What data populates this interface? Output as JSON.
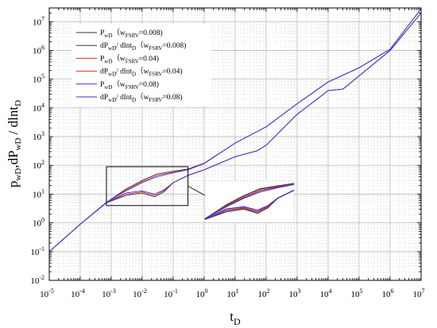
{
  "chart_data": {
    "type": "line",
    "xlabel": "t",
    "xlabel_sub": "D",
    "ylabel_parts": [
      "p",
      "wD",
      ",dP",
      "wD",
      " / dlnt",
      "D"
    ],
    "xscale": "log",
    "yscale": "log",
    "xlim": [
      1e-05,
      10000000
    ],
    "ylim": [
      0.01,
      30000000
    ],
    "grid": true,
    "legend_position": "top-left",
    "x_ticks": [
      {
        "base": "10",
        "exp": "-5",
        "v": 1e-05
      },
      {
        "base": "10",
        "exp": "-4",
        "v": 0.0001
      },
      {
        "base": "10",
        "exp": "-3",
        "v": 0.001
      },
      {
        "base": "10",
        "exp": "-2",
        "v": 0.01
      },
      {
        "base": "10",
        "exp": "-1",
        "v": 0.1
      },
      {
        "base": "10",
        "exp": "0",
        "v": 1
      },
      {
        "base": "10",
        "exp": "1",
        "v": 10
      },
      {
        "base": "10",
        "exp": "2",
        "v": 100
      },
      {
        "base": "10",
        "exp": "3",
        "v": 1000
      },
      {
        "base": "10",
        "exp": "4",
        "v": 10000
      },
      {
        "base": "10",
        "exp": "5",
        "v": 100000
      },
      {
        "base": "10",
        "exp": "6",
        "v": 1000000
      },
      {
        "base": "10",
        "exp": "7",
        "v": 10000000
      }
    ],
    "y_ticks": [
      {
        "base": "10",
        "exp": "-2",
        "v": 0.01
      },
      {
        "base": "10",
        "exp": "-1",
        "v": 0.1
      },
      {
        "base": "10",
        "exp": "0",
        "v": 1
      },
      {
        "base": "10",
        "exp": "1",
        "v": 10
      },
      {
        "base": "10",
        "exp": "2",
        "v": 100
      },
      {
        "base": "10",
        "exp": "3",
        "v": 1000
      },
      {
        "base": "10",
        "exp": "4",
        "v": 10000
      },
      {
        "base": "10",
        "exp": "5",
        "v": 100000
      },
      {
        "base": "10",
        "exp": "6",
        "v": 1000000
      },
      {
        "base": "10",
        "exp": "7",
        "v": 10000000
      }
    ],
    "legend": [
      {
        "parts": [
          [
            "P",
            ""
          ],
          [
            "wD",
            "sub"
          ],
          [
            "（w",
            ""
          ],
          [
            "FSRV",
            "sub"
          ],
          [
            "=0.008)",
            ""
          ]
        ],
        "color": "#333333"
      },
      {
        "parts": [
          [
            "dP",
            ""
          ],
          [
            "wD",
            "sub"
          ],
          [
            "/ dlnt",
            ""
          ],
          [
            "D",
            "sub"
          ],
          [
            "（w",
            ""
          ],
          [
            "FSRV",
            "sub"
          ],
          [
            "=0.008)",
            ""
          ]
        ],
        "color": "#333333"
      },
      {
        "parts": [
          [
            "P",
            ""
          ],
          [
            "wD",
            "sub"
          ],
          [
            "（w",
            ""
          ],
          [
            "FSRV",
            "sub"
          ],
          [
            "=0.04)",
            ""
          ]
        ],
        "color": "#e8262c"
      },
      {
        "parts": [
          [
            "dP",
            ""
          ],
          [
            "wD",
            "sub"
          ],
          [
            "/ dlnt",
            ""
          ],
          [
            "D",
            "sub"
          ],
          [
            "（w",
            ""
          ],
          [
            "FSRV",
            "sub"
          ],
          [
            "=0.04)",
            ""
          ]
        ],
        "color": "#e8262c"
      },
      {
        "parts": [
          [
            "P",
            ""
          ],
          [
            "wD",
            "sub"
          ],
          [
            "（w",
            ""
          ],
          [
            "FSRV",
            "sub"
          ],
          [
            "=0.08)",
            ""
          ]
        ],
        "color": "#3535e0"
      },
      {
        "parts": [
          [
            "dP",
            ""
          ],
          [
            "wD",
            "sub"
          ],
          [
            "/ dlnt",
            ""
          ],
          [
            "D",
            "sub"
          ],
          [
            "（w",
            ""
          ],
          [
            "FSRV",
            "sub"
          ],
          [
            "=0.08)",
            ""
          ]
        ],
        "color": "#3535e0"
      }
    ],
    "series": [
      {
        "name": "PwD (wFSRV=0.008)",
        "color": "#333333",
        "x": [
          1e-05,
          0.0001,
          0.0007,
          0.003,
          0.01,
          0.03,
          0.1,
          0.3,
          1,
          10,
          100,
          1000,
          10000,
          100000,
          1000000,
          10000000
        ],
        "y": [
          0.1,
          0.9,
          5.2,
          15,
          30,
          50,
          62,
          75,
          120,
          600,
          2200,
          14000,
          80000,
          250000,
          1100000,
          28000000
        ]
      },
      {
        "name": "dPwD/dlntD (wFSRV=0.008)",
        "color": "#333333",
        "x": [
          1e-05,
          0.0001,
          0.0007,
          0.003,
          0.01,
          0.025,
          0.05,
          0.1,
          0.3,
          1,
          10,
          50,
          100,
          1000,
          10000,
          30000,
          100000,
          1000000,
          10000000
        ],
        "y": [
          0.1,
          0.9,
          5,
          9,
          11,
          8,
          12,
          25,
          45,
          70,
          200,
          320,
          500,
          6000,
          40000,
          45000,
          130000,
          1000000,
          20000000
        ]
      },
      {
        "name": "PwD (wFSRV=0.04)",
        "color": "#e8262c",
        "x": [
          1e-05,
          0.0001,
          0.0007,
          0.003,
          0.01,
          0.03,
          0.1,
          0.3,
          1,
          10,
          100,
          1000,
          10000,
          100000,
          1000000,
          10000000
        ],
        "y": [
          0.1,
          0.9,
          5.2,
          14,
          27,
          45,
          58,
          72,
          118,
          600,
          2200,
          14000,
          80000,
          250000,
          1100000,
          28000000
        ]
      },
      {
        "name": "dPwD/dlntD (wFSRV=0.04)",
        "color": "#e8262c",
        "x": [
          1e-05,
          0.0001,
          0.0007,
          0.003,
          0.01,
          0.025,
          0.05,
          0.1,
          0.3,
          1,
          10,
          50,
          100,
          1000,
          10000,
          30000,
          100000,
          1000000,
          10000000
        ],
        "y": [
          0.1,
          0.9,
          5,
          10,
          12,
          9,
          13,
          25,
          45,
          70,
          200,
          320,
          500,
          6000,
          40000,
          45000,
          130000,
          1000000,
          20000000
        ]
      },
      {
        "name": "PwD (wFSRV=0.08)",
        "color": "#3535e0",
        "x": [
          1e-05,
          0.0001,
          0.0007,
          0.003,
          0.01,
          0.03,
          0.1,
          0.3,
          1,
          10,
          100,
          1000,
          10000,
          100000,
          1000000,
          10000000
        ],
        "y": [
          0.1,
          0.9,
          5.2,
          13,
          25,
          40,
          55,
          70,
          115,
          600,
          2200,
          14000,
          80000,
          250000,
          1100000,
          28000000
        ]
      },
      {
        "name": "dPwD/dlntD (wFSRV=0.08)",
        "color": "#3535e0",
        "x": [
          1e-05,
          0.0001,
          0.0007,
          0.003,
          0.01,
          0.025,
          0.05,
          0.1,
          0.3,
          1,
          10,
          50,
          100,
          1000,
          10000,
          30000,
          100000,
          1000000,
          10000000
        ],
        "y": [
          0.1,
          0.9,
          5,
          11,
          13,
          10,
          14,
          25,
          45,
          70,
          200,
          320,
          500,
          6000,
          40000,
          45000,
          130000,
          1000000,
          20000000
        ]
      }
    ],
    "zoom_box": {
      "x": [
        0.0007,
        0.3
      ],
      "y": [
        4,
        90
      ]
    }
  }
}
